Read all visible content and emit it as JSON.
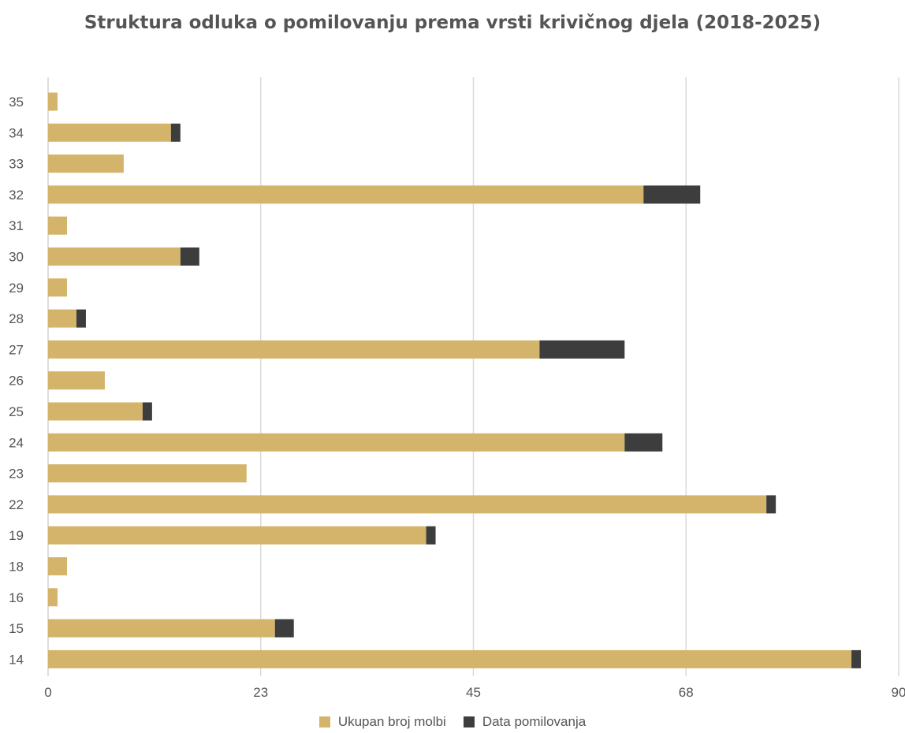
{
  "chart_data": {
    "type": "bar",
    "orientation": "horizontal",
    "stacked": true,
    "title": "Struktura odluka o pomilovanju prema vrsti krivičnog djela (2018-2025)",
    "categories": [
      "35",
      "34",
      "33",
      "32",
      "31",
      "30",
      "29",
      "28",
      "27",
      "26",
      "25",
      "24",
      "23",
      "22",
      "19",
      "18",
      "16",
      "15",
      "14"
    ],
    "series": [
      {
        "name": "Ukupan broj molbi",
        "color": "#d4b46a",
        "values": [
          1,
          13,
          8,
          63,
          2,
          14,
          2,
          3,
          52,
          6,
          10,
          61,
          21,
          76,
          40,
          2,
          1,
          24,
          85
        ]
      },
      {
        "name": "Data pomilovanja",
        "color": "#3d3d3d",
        "values": [
          0,
          1,
          0,
          6,
          0,
          2,
          0,
          1,
          9,
          0,
          1,
          4,
          0,
          1,
          1,
          0,
          0,
          2,
          1
        ]
      }
    ],
    "xticks": [
      "0",
      "23",
      "45",
      "68",
      "90"
    ],
    "xlim": [
      0,
      90
    ],
    "grid": true,
    "legend_position": "bottom"
  }
}
